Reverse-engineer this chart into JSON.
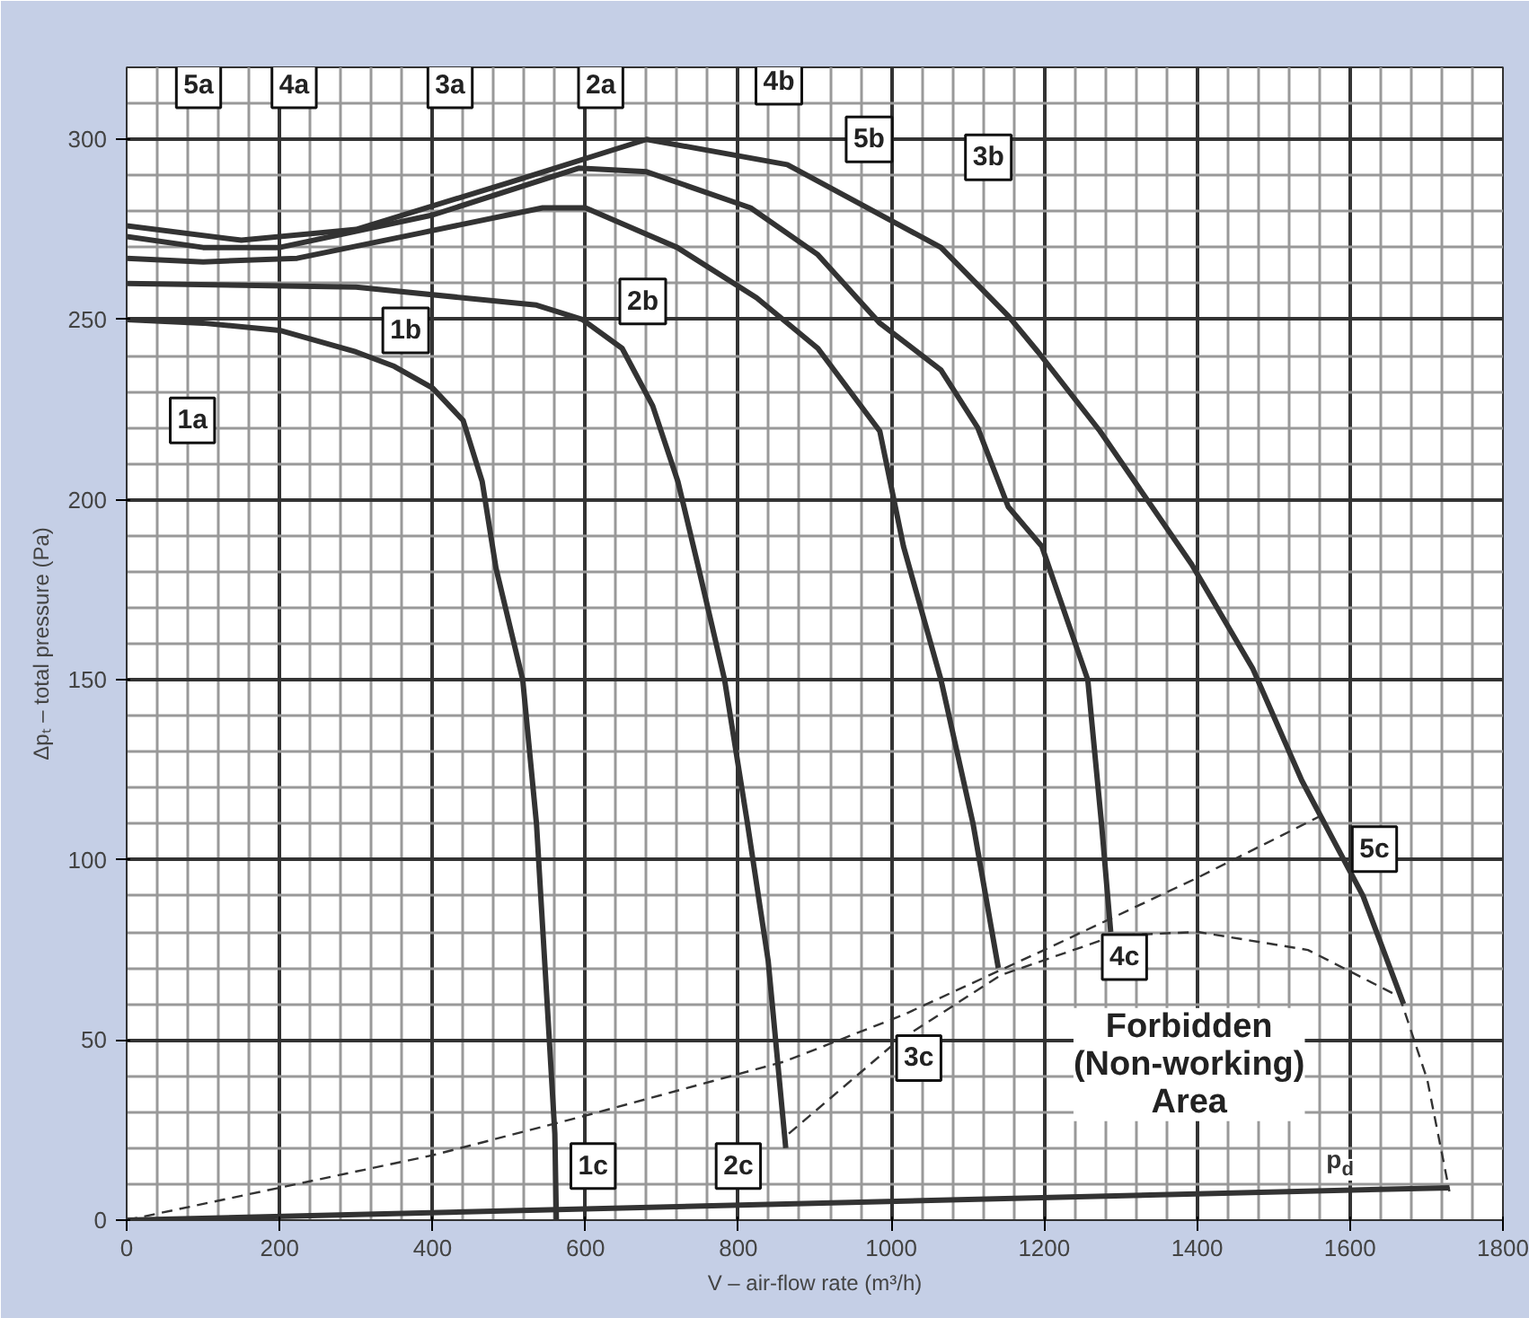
{
  "chart_data": {
    "type": "line",
    "xlabel": "V – air-flow rate (m³/h)",
    "ylabel": "Δpₜ – total pressure (Pa)",
    "xlim": [
      0,
      1800
    ],
    "ylim": [
      0,
      320
    ],
    "xticks": [
      0,
      200,
      400,
      600,
      800,
      1000,
      1200,
      1400,
      1600,
      1800
    ],
    "yticks": [
      0,
      50,
      100,
      150,
      200,
      250,
      300
    ],
    "grid": true,
    "series": [
      {
        "color": "#333333",
        "line_style": "solid",
        "x": [
          0,
          100,
          200,
          300,
          350,
          400,
          440,
          465,
          483,
          518,
          536,
          550,
          560,
          562
        ],
        "values": [
          250,
          249,
          247,
          241,
          237,
          231,
          222,
          205,
          181,
          150,
          110,
          60,
          24,
          0
        ]
      },
      {
        "color": "#333333",
        "line_style": "solid",
        "x": [
          0,
          300,
          536,
          596,
          648,
          688,
          721,
          748,
          782,
          812,
          839,
          862
        ],
        "values": [
          260,
          259,
          254,
          250,
          242,
          226,
          205,
          181,
          150,
          110,
          72,
          20
        ]
      },
      {
        "color": "#333333",
        "line_style": "solid",
        "x": [
          0,
          100,
          223,
          384,
          544,
          600,
          720,
          824,
          904,
          985,
          1016,
          1065,
          1107,
          1140
        ],
        "values": [
          267,
          266,
          267,
          274,
          281,
          281,
          270,
          256,
          242,
          219,
          187,
          150,
          110,
          70
        ]
      },
      {
        "color": "#333333",
        "line_style": "solid",
        "x": [
          0,
          100,
          200,
          400,
          591,
          680,
          816,
          904,
          985,
          1065,
          1113,
          1153,
          1197,
          1257,
          1275,
          1287
        ],
        "values": [
          273,
          270,
          270,
          279,
          292,
          291,
          281,
          268,
          249,
          236,
          220,
          198,
          187,
          150,
          110,
          80
        ]
      },
      {
        "color": "#333333",
        "line_style": "solid",
        "x": [
          0,
          150,
          300,
          500,
          680,
          864,
          1065,
          1153,
          1192,
          1273,
          1393,
          1473,
          1537,
          1617,
          1670
        ],
        "values": [
          276,
          272,
          275,
          288,
          300,
          293,
          270,
          251,
          241,
          219,
          182,
          153,
          122,
          90,
          60
        ]
      },
      {
        "color": "#333333",
        "line_style": "dashed",
        "x": [
          0,
          200,
          400,
          600,
          860,
          1016,
          1200,
          1400,
          1569
        ],
        "values": [
          0,
          9,
          18,
          29,
          44,
          57,
          75,
          95,
          113
        ]
      },
      {
        "color": "#333333",
        "line_style": "dashed",
        "x": [
          866,
          1004,
          1143,
          1293,
          1401,
          1545,
          1665,
          1701,
          1730
        ],
        "values": [
          24,
          49,
          68,
          79,
          80,
          75,
          62,
          39,
          8
        ]
      },
      {
        "name": "p$_{d}$",
        "color": "#333333",
        "line_style": "solid",
        "x": [
          0,
          1730
        ],
        "values": [
          0,
          9
        ]
      }
    ],
    "annotations": [
      {
        "text": "5a",
        "x": 94,
        "y": 315
      },
      {
        "text": "4a",
        "x": 219,
        "y": 315
      },
      {
        "text": "3a",
        "x": 423,
        "y": 315
      },
      {
        "text": "2a",
        "x": 620,
        "y": 315
      },
      {
        "text": "4b",
        "x": 853,
        "y": 316
      },
      {
        "text": "5b",
        "x": 971,
        "y": 300
      },
      {
        "text": "3b",
        "x": 1127,
        "y": 295
      },
      {
        "text": "1a",
        "x": 86,
        "y": 222
      },
      {
        "text": "1b",
        "x": 365,
        "y": 247
      },
      {
        "text": "2b",
        "x": 675,
        "y": 255
      },
      {
        "text": "1c",
        "x": 610,
        "y": 15
      },
      {
        "text": "2c",
        "x": 800,
        "y": 15
      },
      {
        "text": "3c",
        "x": 1036,
        "y": 45
      },
      {
        "text": "4c",
        "x": 1305,
        "y": 73
      },
      {
        "text": "5c",
        "x": 1632,
        "y": 103
      },
      "Forbidden\n(Non-working)\nArea"
    ]
  }
}
